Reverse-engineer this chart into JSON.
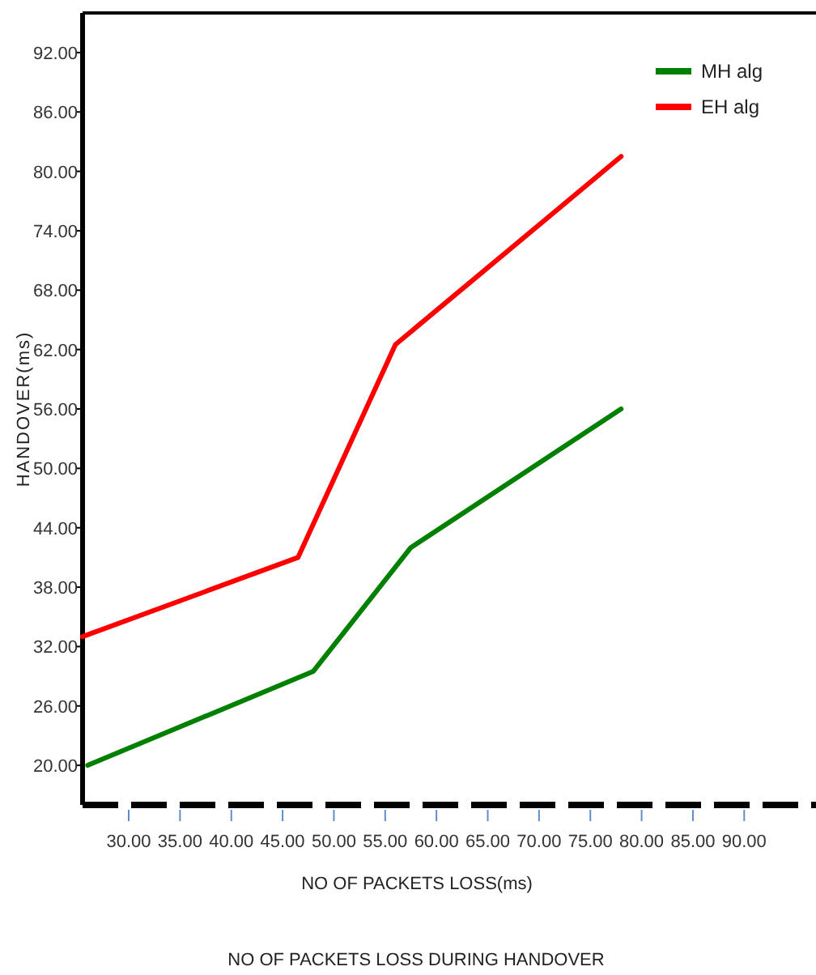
{
  "chart_data": {
    "type": "line",
    "xlabel": "NO OF PACKETS LOSS(ms)",
    "ylabel": "HANDOVER(ms)",
    "annotations": [
      "NO OF PACKETS LOSS DURING HANDOVER"
    ],
    "xlim": [
      25.5,
      97
    ],
    "ylim": [
      16,
      96
    ],
    "xticks": [
      {
        "value": 30,
        "label": "30.00"
      },
      {
        "value": 35,
        "label": "35.00"
      },
      {
        "value": 40,
        "label": "40.00"
      },
      {
        "value": 45,
        "label": "45.00"
      },
      {
        "value": 50,
        "label": "50.00"
      },
      {
        "value": 55,
        "label": "55.00"
      },
      {
        "value": 60,
        "label": "60.00"
      },
      {
        "value": 65,
        "label": "65.00"
      },
      {
        "value": 70,
        "label": "70.00"
      },
      {
        "value": 75,
        "label": "75.00"
      },
      {
        "value": 80,
        "label": "80.00"
      },
      {
        "value": 85,
        "label": "85.00"
      },
      {
        "value": 90,
        "label": "90.00"
      }
    ],
    "yticks": [
      {
        "value": 20,
        "label": "20.00"
      },
      {
        "value": 26,
        "label": "26.00"
      },
      {
        "value": 32,
        "label": "32.00"
      },
      {
        "value": 38,
        "label": "38.00"
      },
      {
        "value": 44,
        "label": "44.00"
      },
      {
        "value": 50,
        "label": "50.00"
      },
      {
        "value": 56,
        "label": "56.00"
      },
      {
        "value": 62,
        "label": "62.00"
      },
      {
        "value": 68,
        "label": "68.00"
      },
      {
        "value": 74,
        "label": "74.00"
      },
      {
        "value": 80,
        "label": "80.00"
      },
      {
        "value": 86,
        "label": "86.00"
      },
      {
        "value": 92,
        "label": "92.00"
      }
    ],
    "series": [
      {
        "name": "MH alg",
        "color": "#008000",
        "x": [
          26,
          48,
          57.5,
          78
        ],
        "values": [
          20,
          29.5,
          42,
          56
        ]
      },
      {
        "name": "EH alg",
        "color": "#ff0000",
        "x": [
          25.5,
          46.5,
          56,
          78
        ],
        "values": [
          33,
          41,
          62.5,
          81.5
        ]
      }
    ],
    "legend": "top right",
    "grid": false,
    "marker": "none",
    "line_style": "solid"
  }
}
